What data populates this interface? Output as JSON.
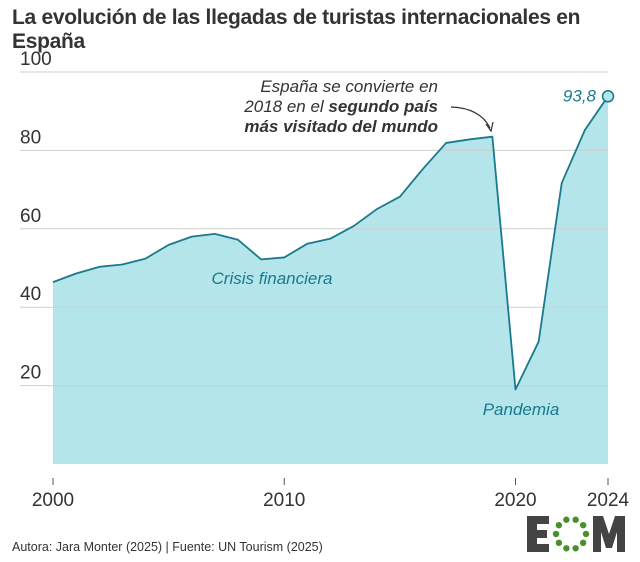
{
  "chart_data": {
    "type": "area",
    "title": "La evolución de las llegadas de turistas internacionales en España",
    "x": [
      2000,
      2001,
      2002,
      2003,
      2004,
      2005,
      2006,
      2007,
      2008,
      2009,
      2010,
      2011,
      2012,
      2013,
      2014,
      2015,
      2016,
      2017,
      2018,
      2019,
      2020,
      2021,
      2022,
      2023,
      2024
    ],
    "values": [
      46.4,
      48.6,
      50.3,
      50.9,
      52.4,
      55.9,
      58.0,
      58.7,
      57.2,
      52.2,
      52.7,
      56.2,
      57.5,
      60.7,
      65.0,
      68.2,
      75.3,
      81.9,
      82.8,
      83.5,
      19.0,
      31.2,
      71.7,
      85.2,
      93.8
    ],
    "xlim": [
      2000,
      2024
    ],
    "ylim": [
      0,
      100
    ],
    "xticks": [
      "2000",
      "2010",
      "2020",
      "2024"
    ],
    "yticks": [
      "20",
      "40",
      "60",
      "80",
      "100"
    ],
    "grid": true,
    "colors": {
      "line": "#1a7a8c",
      "fill": "#b3e5ea",
      "label": "#1a7a8c"
    },
    "annotations": {
      "last_value": "93,8",
      "crisis": "Crisis financiera",
      "pandemic": "Pandemia",
      "note_line1": "España se convierte en",
      "note_line2_a": "2018 en el ",
      "note_line2_b": "segundo país",
      "note_line3": "más visitado del mundo"
    }
  },
  "footer": {
    "credit": "Autora: Jara Monter (2025) | Fuente: UN Tourism (2025)",
    "logo": "EOM"
  }
}
